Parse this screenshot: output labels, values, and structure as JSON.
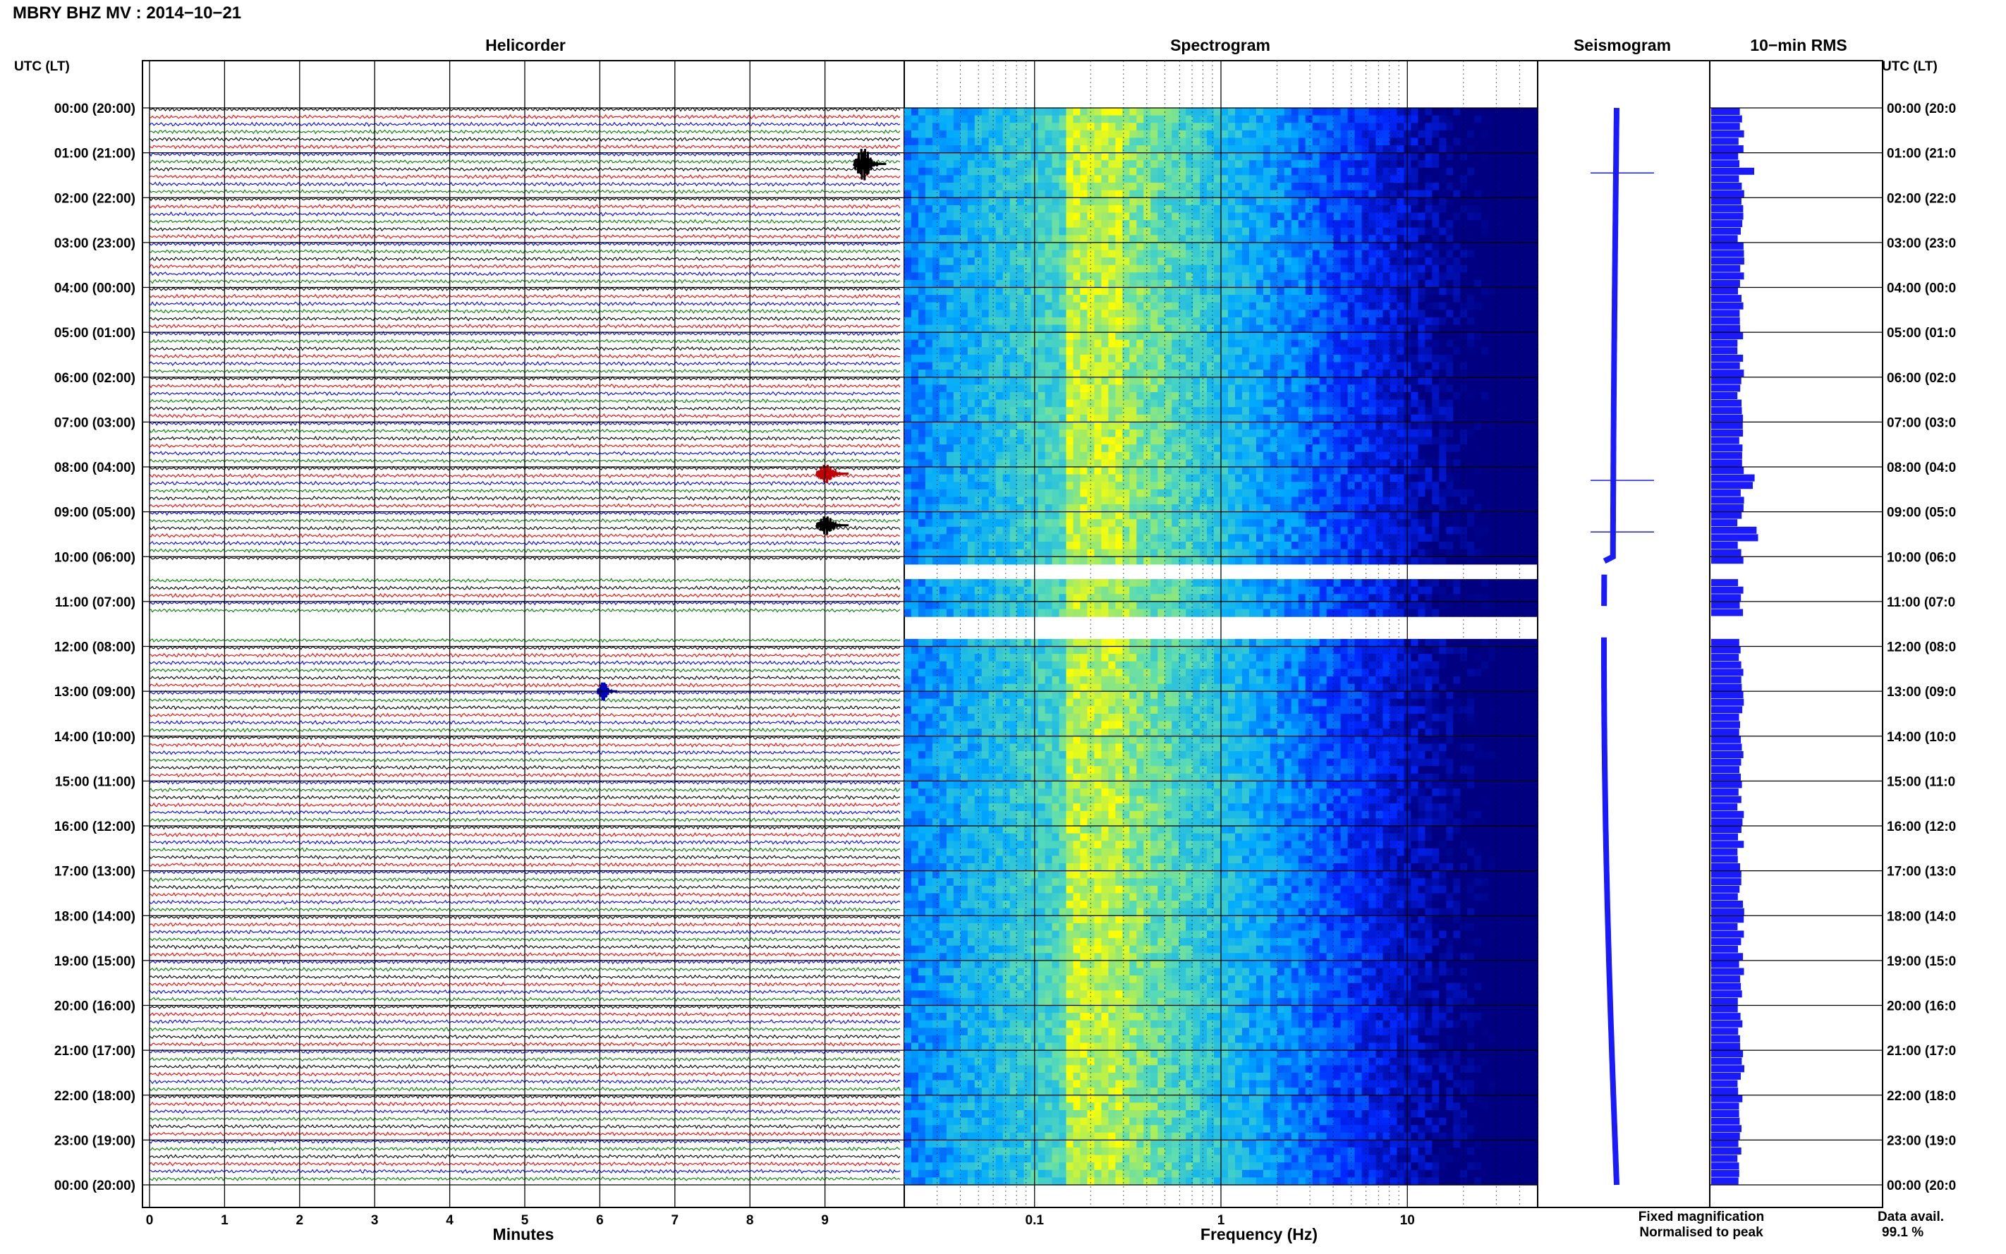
{
  "title": "MBRY BHZ MV : 2014−10−21",
  "time_axis_label": "UTC (LT)",
  "panels": {
    "helicorder": "Helicorder",
    "spectrogram": "Spectrogram",
    "seismogram": "Seismogram",
    "rms": "10−min RMS"
  },
  "legend": {
    "fixed": "Fixed magnification",
    "normalised": "Normalised to peak",
    "fixed_color": "#1a1aff",
    "normalised_color": "#ff1a1a"
  },
  "data_avail": {
    "label": "Data avail.",
    "value": "99.1 %"
  },
  "colors": {
    "helicorder_traces": [
      "#000000",
      "#ff0000",
      "#0000ff",
      "#008000"
    ],
    "seismogram": "#1a1aff",
    "rms": "#1a1aff",
    "spectrogram_low": "#000080",
    "spectrogram_high": "#ffff00"
  },
  "chart_data": [
    {
      "type": "line",
      "title": "Helicorder",
      "xlabel": "Minutes",
      "ylabel": "UTC (LT)",
      "xlim": [
        0,
        10
      ],
      "x_ticks": [
        0,
        1,
        2,
        3,
        4,
        5,
        6,
        7,
        8,
        9
      ],
      "x_tick_labels": [
        "0",
        "1",
        "2",
        "3",
        "4",
        "5",
        "6",
        "7",
        "8",
        "9"
      ],
      "ylim": [
        0,
        24
      ],
      "rows_per_hour": 6,
      "trace_colors_cycle": [
        "black",
        "red",
        "blue",
        "green"
      ],
      "time_labels_left": [
        "00:00 (20:00)",
        "01:00 (21:00)",
        "02:00 (22:00)",
        "03:00 (23:00)",
        "04:00 (00:00)",
        "05:00 (01:00)",
        "06:00 (02:00)",
        "07:00 (03:00)",
        "08:00 (04:00)",
        "09:00 (05:00)",
        "10:00 (06:00)",
        "11:00 (07:00)",
        "12:00 (08:00)",
        "13:00 (09:00)",
        "14:00 (10:00)",
        "15:00 (11:00)",
        "16:00 (12:00)",
        "17:00 (13:00)",
        "18:00 (14:00)",
        "19:00 (15:00)",
        "20:00 (16:00)",
        "21:00 (17:00)",
        "22:00 (18:00)",
        "23:00 (19:00)",
        "00:00 (20:00)"
      ],
      "time_labels_right": [
        "00:00 (20:0",
        "01:00 (21:0",
        "02:00 (22:0",
        "03:00 (23:0",
        "04:00 (00:0",
        "05:00 (01:0",
        "06:00 (02:0",
        "07:00 (03:0",
        "08:00 (04:0",
        "09:00 (05:0",
        "10:00 (06:0",
        "11:00 (07:0",
        "12:00 (08:0",
        "13:00 (09:0",
        "14:00 (10:0",
        "15:00 (11:0",
        "16:00 (12:0",
        "17:00 (13:0",
        "18:00 (14:0",
        "19:00 (15:0",
        "20:00 (16:0",
        "21:00 (17:0",
        "22:00 (18:0",
        "23:00 (19:0",
        "00:00 (20:0"
      ],
      "events": [
        {
          "hour": 1.25,
          "minute": 9.6,
          "color": "black"
        },
        {
          "hour": 8.15,
          "minute": 9.1,
          "color": "red"
        },
        {
          "hour": 9.3,
          "minute": 9.1,
          "color": "black"
        },
        {
          "hour": 13.0,
          "minute": 6.1,
          "color": "blue"
        }
      ],
      "gaps_hours": [
        [
          10.15,
          10.35
        ],
        [
          11.2,
          11.35
        ],
        [
          11.45,
          11.55
        ],
        [
          11.6,
          11.75
        ]
      ]
    },
    {
      "type": "heatmap",
      "title": "Spectrogram",
      "xlabel": "Frequency (Hz)",
      "x_scale": "log",
      "xlim": [
        0.02,
        50
      ],
      "x_ticks": [
        0.1,
        1,
        10
      ],
      "x_tick_labels": [
        "0.1",
        "1",
        "10"
      ],
      "ylim": [
        0,
        24
      ],
      "peak_band_hz": [
        0.15,
        0.3
      ]
    },
    {
      "type": "line",
      "title": "Seismogram",
      "spikes_hours": [
        1.45,
        8.3,
        9.45
      ]
    },
    {
      "type": "bar",
      "title": "10−min RMS",
      "orientation": "horizontal",
      "interval_minutes": 10,
      "bins": 144,
      "peaks_hours": [
        8.25,
        9.4,
        1.35
      ]
    }
  ]
}
